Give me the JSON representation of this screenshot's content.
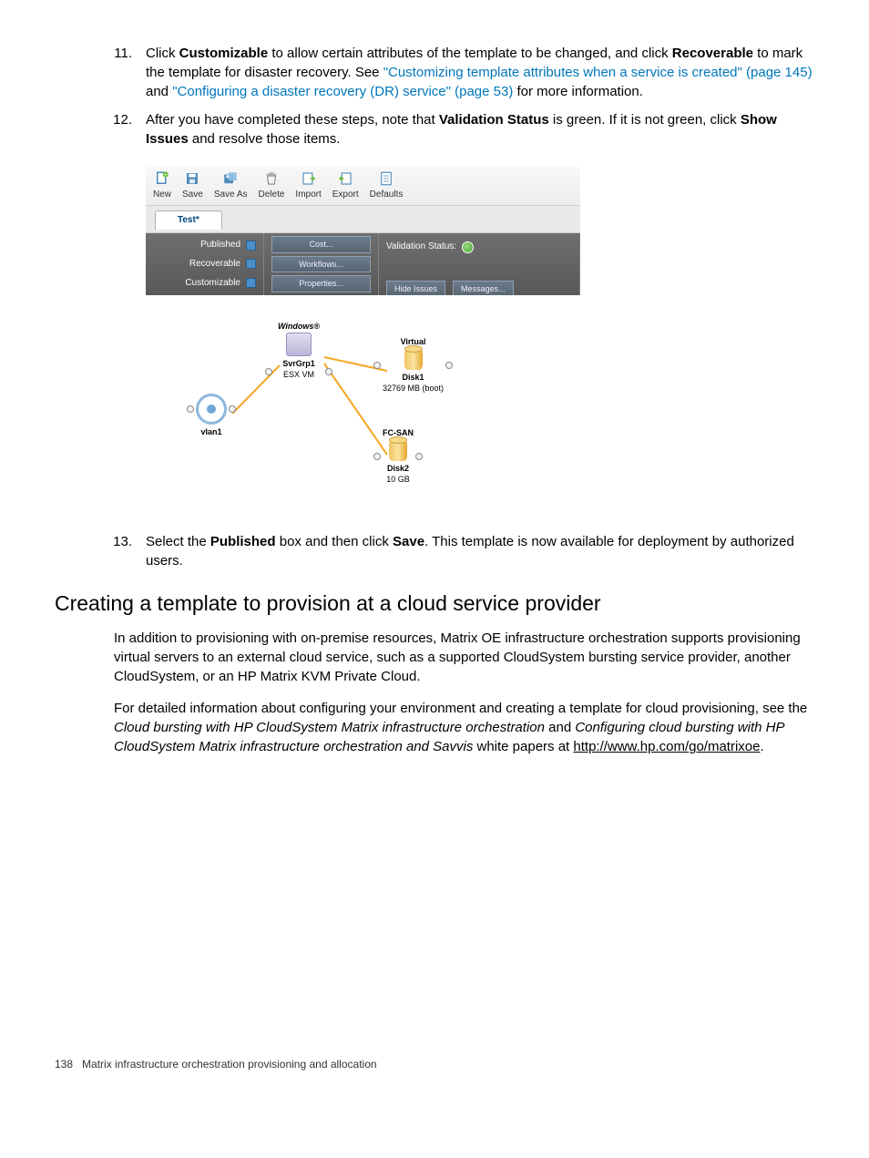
{
  "steps": {
    "s11": {
      "num": "11.",
      "pre": "Click ",
      "b1": "Customizable",
      "mid1": " to allow certain attributes of the template to be changed, and click ",
      "b2": "Recoverable",
      "mid2": " to mark the template for disaster recovery. See ",
      "link1": "\"Customizing template attributes when a service is created\" (page 145)",
      "mid3": " and ",
      "link2": "\"Configuring a disaster recovery (DR) service\" (page 53)",
      "post": " for more information."
    },
    "s12": {
      "num": "12.",
      "pre": "After you have completed these steps, note that ",
      "b1": "Validation Status",
      "mid1": " is green. If it is not green, click ",
      "b2": "Show Issues",
      "post": " and resolve those items."
    },
    "s13": {
      "num": "13.",
      "pre": "Select the ",
      "b1": "Published",
      "mid1": " box and then click ",
      "b2": "Save",
      "post": ". This template is now available for deployment by authorized users."
    }
  },
  "screenshot": {
    "toolbar": [
      {
        "label": "New",
        "icon": "new"
      },
      {
        "label": "Save",
        "icon": "save"
      },
      {
        "label": "Save As",
        "icon": "saveas"
      },
      {
        "label": "Delete",
        "icon": "delete"
      },
      {
        "label": "Import",
        "icon": "import"
      },
      {
        "label": "Export",
        "icon": "export"
      },
      {
        "label": "Defaults",
        "icon": "defaults"
      }
    ],
    "tab": "Test*",
    "checkboxes": [
      "Published",
      "Recoverable",
      "Customizable"
    ],
    "buttons": [
      "Cost...",
      "Workflows...",
      "Properties..."
    ],
    "validation_label": "Validation Status:",
    "hide_issues": "Hide Issues",
    "messages": "Messages...",
    "nodes": {
      "windows": "Windows®",
      "svrgrp": "SvrGrp1",
      "esx": "ESX VM",
      "virtual": "Virtual",
      "disk1": "Disk1",
      "disk1_sub": "32769 MB (boot)",
      "fcsan": "FC-SAN",
      "disk2": "Disk2",
      "disk2_sub": "10 GB",
      "vlan": "vlan1"
    },
    "colors": {
      "toolbar_bg_from": "#f8f8f8",
      "toolbar_bg_to": "#ededed",
      "propbar_from": "#6f6f6f",
      "propbar_to": "#585858",
      "link_line": "#f5a623",
      "icon_blue": "#4e8ab8"
    }
  },
  "section_heading": "Creating a template to provision at a cloud service provider",
  "para1": "In addition to provisioning with on-premise resources, Matrix OE infrastructure orchestration supports provisioning virtual servers to an external cloud service, such as a supported CloudSystem bursting service provider, another CloudSystem, or an HP Matrix KVM Private Cloud.",
  "para2": {
    "pre": "For detailed information about configuring your environment and creating a template for cloud provisioning, see the ",
    "i1": "Cloud bursting with HP CloudSystem Matrix infrastructure orchestration",
    "mid": " and ",
    "i2": "Configuring cloud bursting with HP CloudSystem Matrix infrastructure orchestration and Savvis",
    "mid2": " white papers at ",
    "url": "http://www.hp.com/go/matrixoe",
    "post": "."
  },
  "footer": {
    "page": "138",
    "title": "Matrix infrastructure orchestration provisioning and allocation"
  }
}
